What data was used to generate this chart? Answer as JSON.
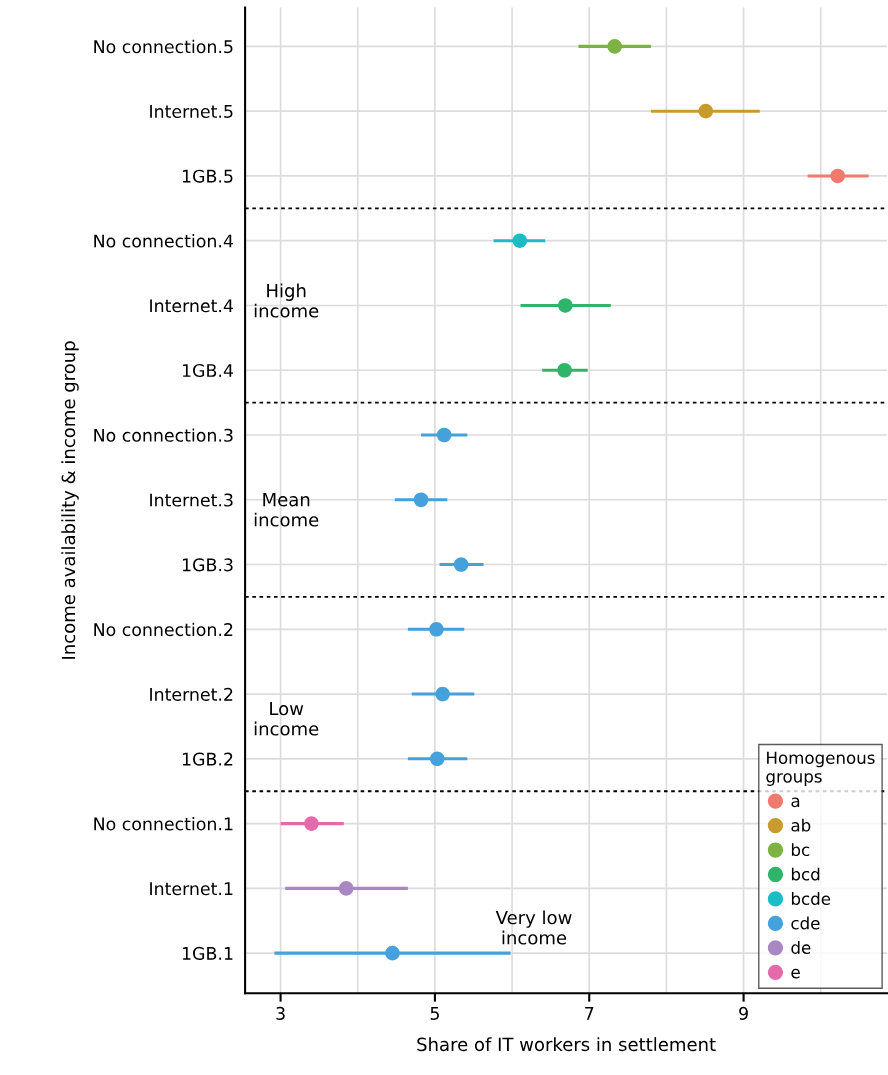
{
  "chart_data": {
    "type": "scatter",
    "xlabel": "Share of IT workers in settlement",
    "ylabel": "Income availability & income group",
    "legend_title": "Homogenous\ngroups",
    "orientation": "horizontal",
    "legend": "bottom right",
    "grid": true,
    "marker": "circle",
    "categories": [
      "No connection.5",
      "Internet.5",
      "1GB.5",
      "No connection.4",
      "Internet.4",
      "1GB.4",
      "No connection.3",
      "Internet.3",
      "1GB.3",
      "No connection.2",
      "Internet.2",
      "1GB.2",
      "No connection.1",
      "Internet.1",
      "1GB.1"
    ],
    "xlim": [
      2.54,
      10.86
    ],
    "xticks": [
      3,
      {
        "value": 4,
        "label": null
      },
      5,
      {
        "value": 6,
        "label": null
      },
      7,
      {
        "value": 8,
        "label": null
      },
      9,
      {
        "value": 10,
        "label": null
      }
    ],
    "series": [
      {
        "name": "a",
        "color": "#f07a6e",
        "values": [
          null,
          null,
          10.22,
          null,
          null,
          null,
          null,
          null,
          null,
          null,
          null,
          null,
          null,
          null,
          null
        ],
        "errors": [
          null,
          null,
          [
            9.83,
            10.62
          ],
          null,
          null,
          null,
          null,
          null,
          null,
          null,
          null,
          null,
          null,
          null,
          null
        ]
      },
      {
        "name": "ab",
        "color": "#c99a2e",
        "values": [
          null,
          8.51,
          null,
          null,
          null,
          null,
          null,
          null,
          null,
          null,
          null,
          null,
          null,
          null,
          null
        ],
        "errors": [
          null,
          [
            7.8,
            9.21
          ],
          null,
          null,
          null,
          null,
          null,
          null,
          null,
          null,
          null,
          null,
          null,
          null,
          null
        ]
      },
      {
        "name": "bc",
        "color": "#7db342",
        "values": [
          7.33,
          null,
          null,
          null,
          null,
          null,
          null,
          null,
          null,
          null,
          null,
          null,
          null,
          null,
          null
        ],
        "errors": [
          [
            6.86,
            7.8
          ],
          null,
          null,
          null,
          null,
          null,
          null,
          null,
          null,
          null,
          null,
          null,
          null,
          null,
          null
        ]
      },
      {
        "name": "bcd",
        "color": "#2fb56a",
        "values": [
          null,
          null,
          null,
          null,
          6.69,
          6.68,
          null,
          null,
          null,
          null,
          null,
          null,
          null,
          null,
          null
        ],
        "errors": [
          null,
          null,
          null,
          null,
          [
            6.11,
            7.28
          ],
          [
            6.39,
            6.98
          ],
          null,
          null,
          null,
          null,
          null,
          null,
          null,
          null,
          null
        ]
      },
      {
        "name": "bcde",
        "color": "#1cbcc6",
        "values": [
          null,
          null,
          null,
          6.1,
          null,
          null,
          null,
          null,
          null,
          null,
          null,
          null,
          null,
          null,
          null
        ],
        "errors": [
          null,
          null,
          null,
          [
            5.76,
            6.43
          ],
          null,
          null,
          null,
          null,
          null,
          null,
          null,
          null,
          null,
          null,
          null
        ]
      },
      {
        "name": "cde",
        "color": "#45a1dc",
        "values": [
          null,
          null,
          null,
          null,
          null,
          null,
          5.12,
          4.82,
          5.34,
          5.02,
          5.1,
          5.03,
          null,
          null,
          4.45
        ],
        "errors": [
          null,
          null,
          null,
          null,
          null,
          null,
          [
            4.82,
            5.42
          ],
          [
            4.48,
            5.16
          ],
          [
            5.06,
            5.63
          ],
          [
            4.65,
            5.38
          ],
          [
            4.7,
            5.51
          ],
          [
            4.65,
            5.42
          ],
          null,
          null,
          [
            2.92,
            5.98
          ]
        ]
      },
      {
        "name": "de",
        "color": "#a987c2",
        "values": [
          null,
          null,
          null,
          null,
          null,
          null,
          null,
          null,
          null,
          null,
          null,
          null,
          null,
          3.85,
          null
        ],
        "errors": [
          null,
          null,
          null,
          null,
          null,
          null,
          null,
          null,
          null,
          null,
          null,
          null,
          null,
          [
            3.06,
            4.65
          ],
          null
        ]
      },
      {
        "name": "e",
        "color": "#e56aaa",
        "values": [
          null,
          null,
          null,
          null,
          null,
          null,
          null,
          null,
          null,
          null,
          null,
          null,
          3.4,
          null,
          null
        ],
        "errors": [
          null,
          null,
          null,
          null,
          null,
          null,
          null,
          null,
          null,
          null,
          null,
          null,
          [
            3.0,
            3.82
          ],
          null,
          null
        ]
      }
    ],
    "annotations": [
      "High\nincome",
      "Mean\nincome",
      "Low\nincome",
      "Very low\nincome"
    ]
  }
}
